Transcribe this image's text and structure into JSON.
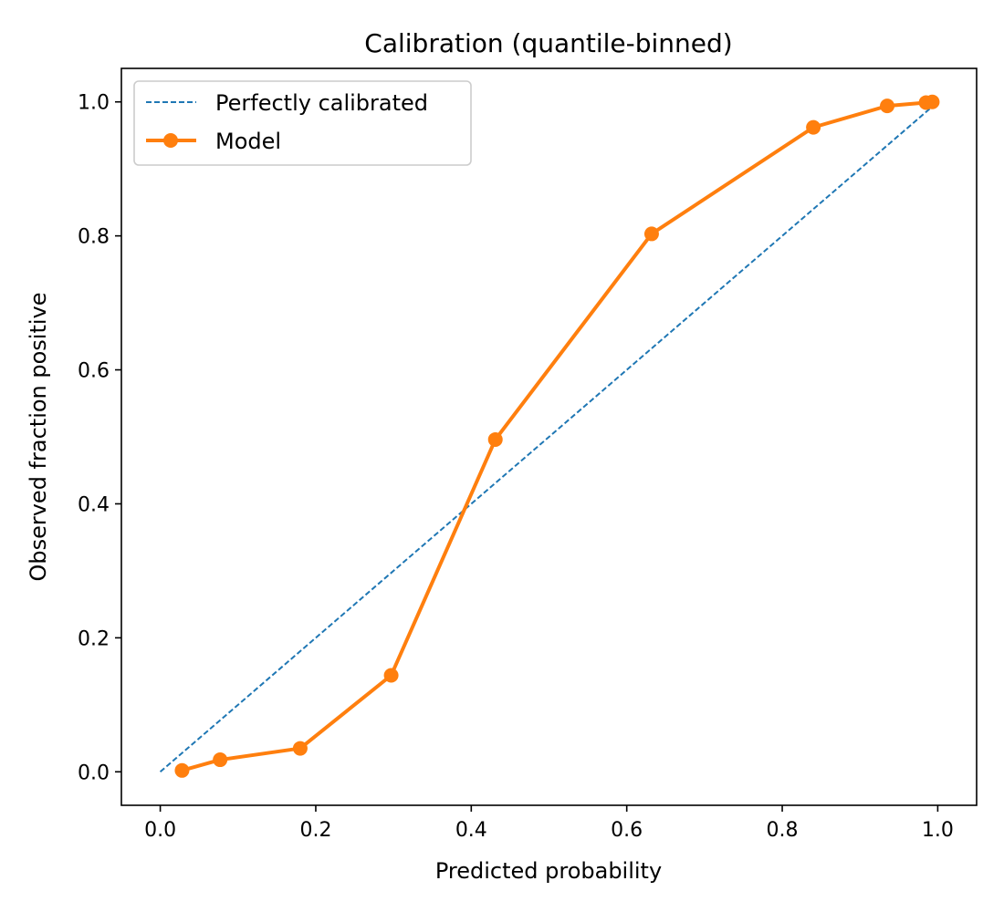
{
  "chart_data": {
    "type": "line",
    "title": "Calibration (quantile-binned)",
    "xlabel": "Predicted probability",
    "ylabel": "Observed fraction positive",
    "xlim": [
      -0.05,
      1.05
    ],
    "ylim": [
      -0.05,
      1.05
    ],
    "xticks": [
      0.0,
      0.2,
      0.4,
      0.6,
      0.8,
      1.0
    ],
    "yticks": [
      0.0,
      0.2,
      0.4,
      0.6,
      0.8,
      1.0
    ],
    "xtick_labels": [
      "0.0",
      "0.2",
      "0.4",
      "0.6",
      "0.8",
      "1.0"
    ],
    "ytick_labels": [
      "0.0",
      "0.2",
      "0.4",
      "0.6",
      "0.8",
      "1.0"
    ],
    "grid": false,
    "legend_position": "top-left",
    "series": [
      {
        "name": "Perfectly calibrated",
        "style": "dashed",
        "color": "#1f77b4",
        "x": [
          0.0,
          1.0
        ],
        "y": [
          0.0,
          1.0
        ]
      },
      {
        "name": "Model",
        "style": "solid-markers",
        "color": "#ff7f0e",
        "x": [
          0.028,
          0.077,
          0.18,
          0.297,
          0.431,
          0.632,
          0.84,
          0.935,
          0.985,
          0.993
        ],
        "y": [
          0.002,
          0.018,
          0.035,
          0.144,
          0.496,
          0.803,
          0.962,
          0.994,
          0.999,
          1.0
        ]
      }
    ]
  }
}
